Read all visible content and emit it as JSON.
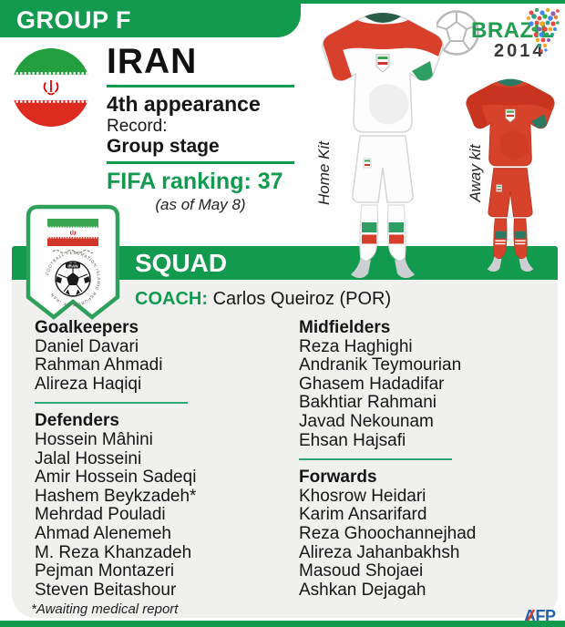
{
  "colors": {
    "green": "#129a4f",
    "separator": "#2fa876",
    "panel": "#f0f1ef",
    "kit_red": "#d7422a",
    "kit_teal": "#2d7a64",
    "afp_blue": "#2563a8"
  },
  "header": {
    "group_label": "GROUP F"
  },
  "event_logo": {
    "title": "BRAZIL",
    "year": "2014"
  },
  "country": {
    "name": "IRAN",
    "appearance": "4th appearance",
    "record_label": "Record:",
    "record_value": "Group stage",
    "fifa_ranking": "FIFA ranking: 37",
    "fifa_note": "(as of May 8)"
  },
  "kits": {
    "home_label": "Home Kit",
    "away_label": "Away kit"
  },
  "crest": {
    "circular_text": "FOOTBALL FEDERATION ISLAMIC REPUBLIC OF IRAN",
    "ball_label": "IRAN"
  },
  "squad": {
    "title": "SQUAD",
    "coach_label": "COACH:",
    "coach_name": "Carlos Queiroz (POR)",
    "sections": [
      {
        "title": "Goalkeepers",
        "players": [
          "Daniel Davari",
          "Rahman Ahmadi",
          "Alireza Haqiqi"
        ]
      },
      {
        "title": "Defenders",
        "players": [
          "Hossein Mâhini",
          "Jalal Hosseini",
          "Amir Hossein Sadeqi",
          "Hashem Beykzadeh*",
          "Mehrdad Pouladi",
          "Ahmad Alenemeh",
          "M. Reza Khanzadeh",
          "Pejman Montazeri",
          "Steven Beitashour"
        ]
      },
      {
        "title": "Midfielders",
        "players": [
          "Reza Haghighi",
          "Andranik Teymourian",
          "Ghasem Hadadifar",
          "Bakhtiar Rahmani",
          "Javad Nekounam",
          "Ehsan Hajsafi"
        ]
      },
      {
        "title": "Forwards",
        "players": [
          "Khosrow Heidari",
          "Karim Ansarifard",
          "Reza Ghoochannejhad",
          "Alireza Jahanbakhsh",
          "Masoud Shojaei",
          "Ashkan Dejagah"
        ]
      }
    ],
    "footnote": "*Awaiting medical report"
  },
  "source": {
    "label": "AFP"
  }
}
